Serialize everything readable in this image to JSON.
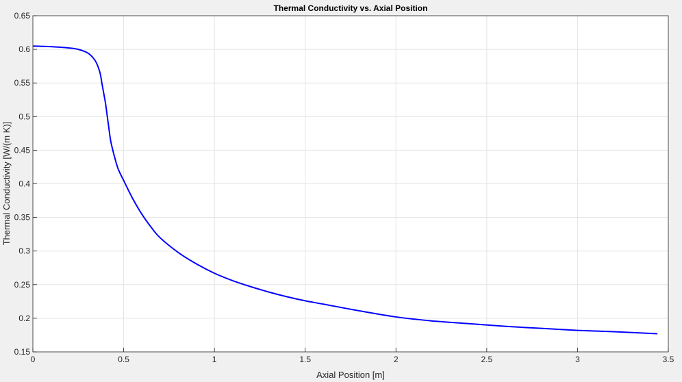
{
  "chart_data": {
    "type": "line",
    "title": "Thermal Conductivity vs. Axial Position",
    "xlabel": "Axial Position [m]",
    "ylabel": "Thermal Conductivity [W/(m K)]",
    "xlim": [
      0,
      3.5
    ],
    "ylim": [
      0.15,
      0.65
    ],
    "grid": true,
    "x_ticks": [
      "0",
      "0.5",
      "1",
      "1.5",
      "2",
      "2.5",
      "3",
      "3.5"
    ],
    "y_ticks": [
      "0.15",
      "0.2",
      "0.25",
      "0.3",
      "0.35",
      "0.4",
      "0.45",
      "0.5",
      "0.55",
      "0.6",
      "0.65"
    ],
    "series": [
      {
        "color": "#0000ff",
        "x": [
          0,
          0.1,
          0.2,
          0.25,
          0.3,
          0.33,
          0.35,
          0.37,
          0.38,
          0.39,
          0.4,
          0.41,
          0.42,
          0.43,
          0.45,
          0.47,
          0.5,
          0.55,
          0.6,
          0.65,
          0.7,
          0.8,
          0.9,
          1.0,
          1.1,
          1.2,
          1.3,
          1.4,
          1.5,
          1.6,
          1.8,
          2.0,
          2.2,
          2.4,
          2.6,
          2.8,
          3.0,
          3.2,
          3.44
        ],
        "y": [
          0.605,
          0.604,
          0.602,
          0.6,
          0.595,
          0.588,
          0.58,
          0.565,
          0.55,
          0.535,
          0.52,
          0.5,
          0.48,
          0.462,
          0.44,
          0.422,
          0.405,
          0.378,
          0.355,
          0.336,
          0.32,
          0.298,
          0.281,
          0.267,
          0.256,
          0.247,
          0.239,
          0.232,
          0.226,
          0.221,
          0.211,
          0.202,
          0.196,
          0.192,
          0.188,
          0.185,
          0.182,
          0.18,
          0.177
        ]
      }
    ]
  }
}
